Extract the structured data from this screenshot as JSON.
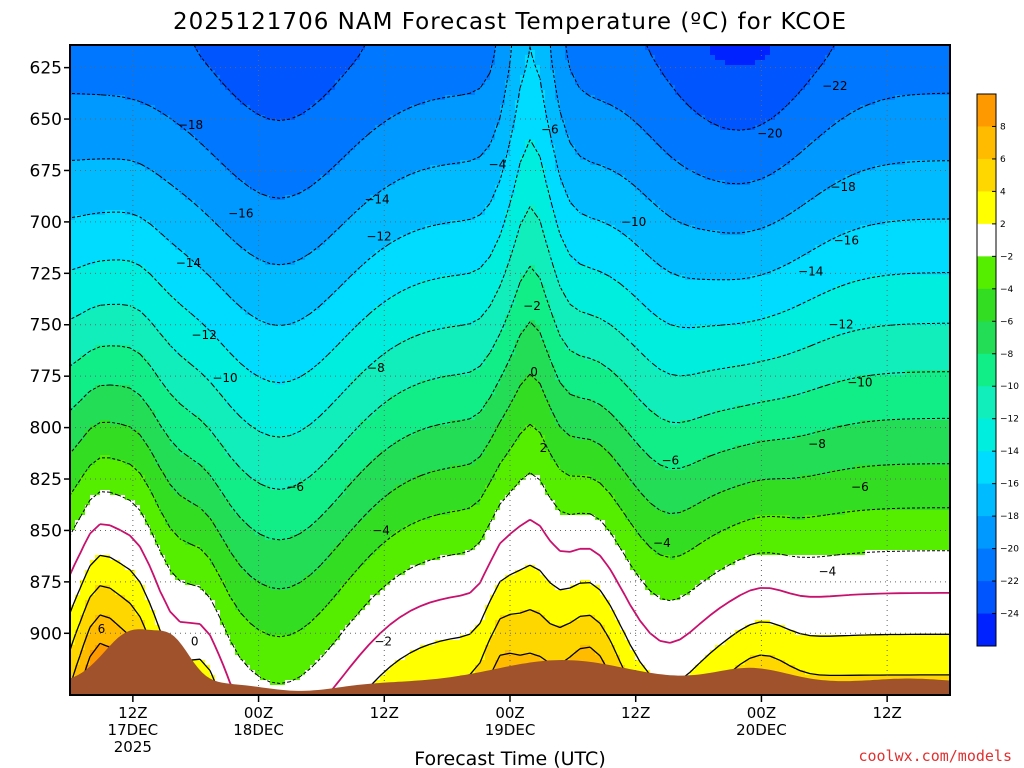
{
  "chart_data": {
    "type": "heatmap",
    "title": "2025121706 NAM Forecast Temperature (ºC) for KCOE",
    "xlabel": "Forecast Time (UTC)",
    "ylabel": "",
    "credit": "coolwx.com/models",
    "y_axis": {
      "unit": "hPa",
      "range": [
        614,
        930
      ],
      "inverted": true,
      "ticks": [
        625,
        650,
        675,
        700,
        725,
        750,
        775,
        800,
        825,
        850,
        875,
        900
      ]
    },
    "x_axis": {
      "unit": "forecast hour",
      "range": [
        0,
        84
      ],
      "ticks": [
        {
          "hour": 6,
          "line1": "12Z",
          "line2": "17DEC",
          "line3": "2025"
        },
        {
          "hour": 18,
          "line1": "00Z",
          "line2": "18DEC",
          "line3": ""
        },
        {
          "hour": 30,
          "line1": "12Z",
          "line2": "",
          "line3": ""
        },
        {
          "hour": 42,
          "line1": "00Z",
          "line2": "19DEC",
          "line3": ""
        },
        {
          "hour": 54,
          "line1": "12Z",
          "line2": "",
          "line3": ""
        },
        {
          "hour": 66,
          "line1": "00Z",
          "line2": "20DEC",
          "line3": ""
        },
        {
          "hour": 78,
          "line1": "12Z",
          "line2": "",
          "line3": ""
        }
      ]
    },
    "colorbar": {
      "levels": [
        10,
        8,
        6,
        4,
        2,
        -2,
        -4,
        -6,
        -8,
        -10,
        -12,
        -14,
        -16,
        -18,
        -20,
        -22,
        -24
      ],
      "colors": [
        "#ff9900",
        "#ffbb00",
        "#ffd700",
        "#ffff00",
        "#ffffff",
        "#55ee00",
        "#33dd22",
        "#22dd55",
        "#11ee88",
        "#11eebb",
        "#00eedd",
        "#00dcff",
        "#00bbff",
        "#0099ff",
        "#0077ff",
        "#0055ff",
        "#0022ff"
      ],
      "tick_labels": [
        {
          "value": 8,
          "text": "8"
        },
        {
          "value": 6,
          "text": "6"
        },
        {
          "value": 4,
          "text": "4"
        },
        {
          "value": 2,
          "text": "2"
        },
        {
          "value": -2,
          "text": "−2"
        },
        {
          "value": -4,
          "text": "−4"
        },
        {
          "value": -6,
          "text": "−6"
        },
        {
          "value": -8,
          "text": "−8"
        },
        {
          "value": -10,
          "text": "−10"
        },
        {
          "value": -12,
          "text": "−12"
        },
        {
          "value": -14,
          "text": "−14"
        },
        {
          "value": -16,
          "text": "−16"
        },
        {
          "value": -18,
          "text": "−18"
        },
        {
          "value": -20,
          "text": "−20"
        },
        {
          "value": -22,
          "text": "−22"
        },
        {
          "value": -24,
          "text": "−24"
        }
      ]
    },
    "contour_labels": [
      {
        "text": "−18",
        "hour": 11.5,
        "p": 653
      },
      {
        "text": "−16",
        "hour": 16.3,
        "p": 696
      },
      {
        "text": "−14",
        "hour": 11.3,
        "p": 720
      },
      {
        "text": "−14",
        "hour": 29.3,
        "p": 689
      },
      {
        "text": "−12",
        "hour": 12.8,
        "p": 755
      },
      {
        "text": "−12",
        "hour": 29.5,
        "p": 707
      },
      {
        "text": "−10",
        "hour": 14.8,
        "p": 776
      },
      {
        "text": "−8",
        "hour": 29.2,
        "p": 771
      },
      {
        "text": "−6",
        "hour": 21.5,
        "p": 829
      },
      {
        "text": "−4",
        "hour": 29.7,
        "p": 850
      },
      {
        "text": "0",
        "hour": 11.9,
        "p": 904
      },
      {
        "text": "−2",
        "hour": 29.9,
        "p": 904
      },
      {
        "text": "−4",
        "hour": 40.8,
        "p": 672
      },
      {
        "text": "−6",
        "hour": 45.8,
        "p": 655
      },
      {
        "text": "−10",
        "hour": 53.8,
        "p": 700
      },
      {
        "text": "−2",
        "hour": 44.1,
        "p": 741
      },
      {
        "text": "0",
        "hour": 44.3,
        "p": 773
      },
      {
        "text": "2",
        "hour": 45.2,
        "p": 810
      },
      {
        "text": "−6",
        "hour": 57.3,
        "p": 816
      },
      {
        "text": "−4",
        "hour": 56.5,
        "p": 856
      },
      {
        "text": "−4",
        "hour": 72.3,
        "p": 870
      },
      {
        "text": "−8",
        "hour": 71.3,
        "p": 808
      },
      {
        "text": "−6",
        "hour": 75.4,
        "p": 829
      },
      {
        "text": "−10",
        "hour": 75.4,
        "p": 778
      },
      {
        "text": "−12",
        "hour": 73.6,
        "p": 750
      },
      {
        "text": "−14",
        "hour": 70.7,
        "p": 724
      },
      {
        "text": "−16",
        "hour": 74.1,
        "p": 709
      },
      {
        "text": "−18",
        "hour": 73.8,
        "p": 683
      },
      {
        "text": "−20",
        "hour": 66.8,
        "p": 657
      },
      {
        "text": "−22",
        "hour": 73.0,
        "p": 634
      },
      {
        "text": "6",
        "hour": 3.0,
        "p": 898
      }
    ]
  }
}
